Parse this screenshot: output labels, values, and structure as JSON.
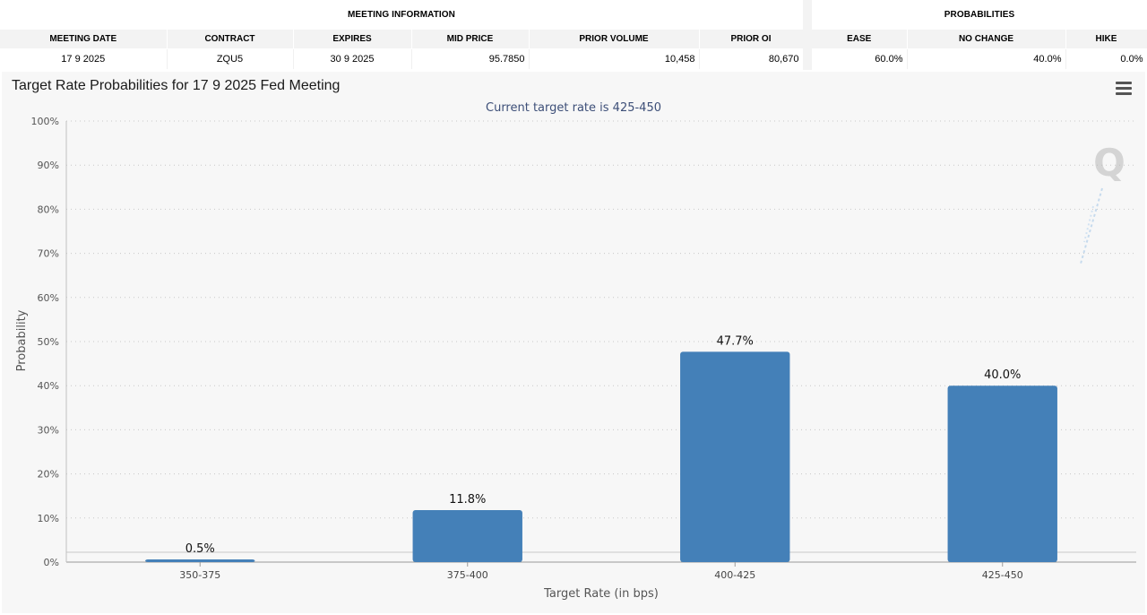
{
  "meeting_info": {
    "title": "MEETING INFORMATION",
    "headers": [
      "MEETING DATE",
      "CONTRACT",
      "EXPIRES",
      "MID PRICE",
      "PRIOR VOLUME",
      "PRIOR OI"
    ],
    "row": [
      "17 9 2025",
      "ZQU5",
      "30 9 2025",
      "95.7850",
      "10,458",
      "80,670"
    ]
  },
  "probabilities": {
    "title": "PROBABILITIES",
    "headers": [
      "EASE",
      "NO CHANGE",
      "HIKE"
    ],
    "row": [
      "60.0%",
      "40.0%",
      "0.0%"
    ]
  },
  "chart_title": "Target Rate Probabilities for 17 9 2025 Fed Meeting",
  "watermark_letter": "Q",
  "menu_icon": "hamburger-menu-icon",
  "chart_data": {
    "type": "bar",
    "title": "Target Rate Probabilities for 17 9 2025 Fed Meeting",
    "subtitle": "Current target rate is 425-450",
    "categories": [
      "350-375",
      "375-400",
      "400-425",
      "425-450"
    ],
    "values": [
      0.5,
      11.8,
      47.7,
      40.0
    ],
    "data_labels": [
      "0.5%",
      "11.8%",
      "47.7%",
      "40.0%"
    ],
    "xlabel": "Target Rate (in bps)",
    "ylabel": "Probability",
    "ylim": [
      0,
      100
    ],
    "y_ticks": [
      "0%",
      "10%",
      "20%",
      "30%",
      "40%",
      "50%",
      "60%",
      "70%",
      "80%",
      "90%",
      "100%"
    ],
    "grid": true,
    "bar_color": "#4480b8",
    "subtitle_color": "#3d4f78"
  }
}
